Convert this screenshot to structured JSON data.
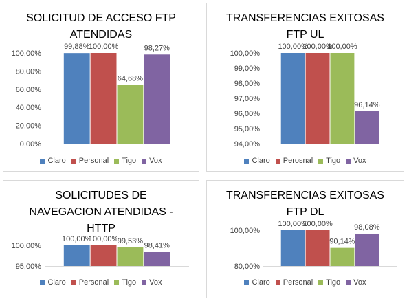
{
  "legend": {
    "labels": [
      "Claro",
      "Personal",
      "Tigo",
      "Vox"
    ]
  },
  "colors": [
    "#4f81bd",
    "#c0504d",
    "#9bbb59",
    "#8064a2"
  ],
  "chart_data": [
    {
      "type": "bar",
      "title_lines": [
        "SOLICITUD DE ACCESO FTP",
        "ATENDIDAS"
      ],
      "categories": [
        "Claro",
        "Personal",
        "Tigo",
        "Vox"
      ],
      "values": [
        99.88,
        100.0,
        64.68,
        98.27
      ],
      "value_labels": [
        "99,88%",
        "100,00%",
        "64,68%",
        "98,27%"
      ],
      "ylim": [
        0,
        100
      ],
      "ticks": [
        {
          "v": 0,
          "label": "0,00%"
        },
        {
          "v": 20,
          "label": "20,00%"
        },
        {
          "v": 40,
          "label": "40,00%"
        },
        {
          "v": 60,
          "label": "60,00%"
        },
        {
          "v": 80,
          "label": "80,00%"
        },
        {
          "v": 100,
          "label": "100,00%"
        }
      ],
      "legend_labels": [
        "Claro",
        "Personal",
        "Tigo",
        "Vox"
      ],
      "legend_position": "bottom",
      "grid": false
    },
    {
      "type": "bar",
      "title_lines": [
        "TRANSFERENCIAS EXITOSAS",
        "FTP UL"
      ],
      "categories": [
        "Claro",
        "Perosnal",
        "Tigo",
        "Vox"
      ],
      "values": [
        100.0,
        100.0,
        100.0,
        96.14
      ],
      "value_labels": [
        "100,00%",
        "100,00%",
        "100,00%",
        "96,14%"
      ],
      "ylim": [
        94,
        100
      ],
      "ticks": [
        {
          "v": 94,
          "label": "94,00%"
        },
        {
          "v": 95,
          "label": "95,00%"
        },
        {
          "v": 96,
          "label": "96,00%"
        },
        {
          "v": 97,
          "label": "97,00%"
        },
        {
          "v": 98,
          "label": "98,00%"
        },
        {
          "v": 99,
          "label": "99,00%"
        },
        {
          "v": 100,
          "label": "100,00%"
        }
      ],
      "legend_labels": [
        "Claro",
        "Perosnal",
        "Tigo",
        "Vox"
      ],
      "legend_position": "bottom",
      "grid": false
    },
    {
      "type": "bar",
      "title_lines": [
        "SOLICITUDES DE",
        "NAVEGACION ATENDIDAS -",
        "HTTP"
      ],
      "categories": [
        "Claro",
        "Personal",
        "Tigo",
        "Vox"
      ],
      "values": [
        100.0,
        100.0,
        99.53,
        98.41
      ],
      "value_labels": [
        "100,00%",
        "100,00%",
        "99,53%",
        "98,41%"
      ],
      "ylim": [
        95,
        100
      ],
      "ticks": [
        {
          "v": 95,
          "label": "95,00%"
        },
        {
          "v": 100,
          "label": "100,00%"
        }
      ],
      "legend_labels": [
        "Claro",
        "Personal",
        "Tigo",
        "Vox"
      ],
      "legend_position": "bottom",
      "grid": false
    },
    {
      "type": "bar",
      "title_lines": [
        "TRANSFERENCIAS EXITOSAS",
        "FTP DL"
      ],
      "categories": [
        "Claro",
        "Personal",
        "Tigo",
        "Vox"
      ],
      "values": [
        100.0,
        100.0,
        90.14,
        98.08
      ],
      "value_labels": [
        "100,00%",
        "100,00%",
        "90,14%",
        "98,08%"
      ],
      "ylim": [
        80,
        100
      ],
      "ticks": [
        {
          "v": 80,
          "label": "80,00%"
        },
        {
          "v": 100,
          "label": "100,00%"
        }
      ],
      "legend_labels": [
        "Claro",
        "Personal",
        "Tigo",
        "Vox"
      ],
      "legend_position": "bottom",
      "grid": false
    }
  ]
}
